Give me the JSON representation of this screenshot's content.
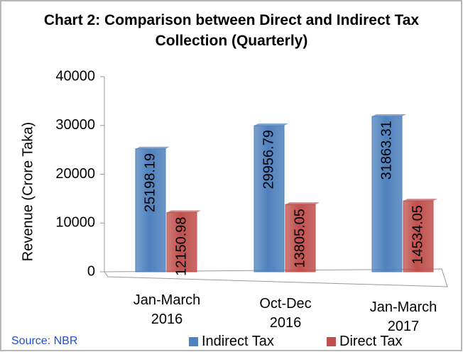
{
  "chart_data": {
    "type": "bar3d",
    "title": "Chart 2: Comparison between Direct and Indirect Tax Collection (Quarterly)",
    "y_label": "Revenue  (Crore Taka)",
    "source": "Source: NBR",
    "categories": [
      "Jan-March 2016",
      "Oct-Dec 2016",
      "Jan-March 2017"
    ],
    "series": [
      {
        "name": "Indirect Tax",
        "color": "#4f81bd",
        "values": [
          25198.19,
          29956.79,
          31863.31
        ]
      },
      {
        "name": "Direct Tax",
        "color": "#c0504d",
        "values": [
          12150.98,
          13805.05,
          14534.05
        ]
      }
    ],
    "ylim": [
      0,
      40000
    ],
    "yticks": [
      0,
      10000,
      20000,
      30000,
      40000
    ],
    "legend": "bottom",
    "grid": false
  }
}
